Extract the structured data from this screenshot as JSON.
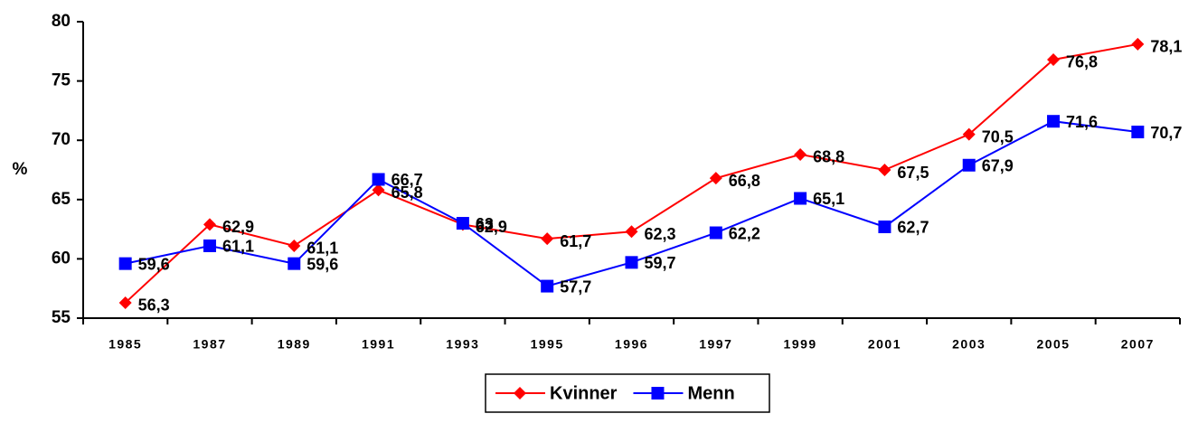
{
  "chart_data": {
    "type": "line",
    "y_label": "%",
    "categories": [
      "1985",
      "1987",
      "1989",
      "1991",
      "1993",
      "1995",
      "1996",
      "1997",
      "1999",
      "2001",
      "2003",
      "2005",
      "2007"
    ],
    "series": [
      {
        "name": "Kvinner",
        "color": "#ff0000",
        "marker": "diamond",
        "values": [
          56.3,
          62.9,
          61.1,
          65.8,
          62.9,
          61.7,
          62.3,
          66.8,
          68.8,
          67.5,
          70.5,
          76.8,
          78.1
        ],
        "value_labels": [
          "56,3",
          "62,9",
          "61,1",
          "65,8",
          "62,9",
          "61,7",
          "62,3",
          "66,8",
          "68,8",
          "67,5",
          "70,5",
          "76,8",
          "78,1"
        ]
      },
      {
        "name": "Menn",
        "color": "#0000ff",
        "marker": "square",
        "values": [
          59.6,
          61.1,
          59.6,
          66.7,
          63,
          57.7,
          59.7,
          62.2,
          65.1,
          62.7,
          67.9,
          71.6,
          70.7
        ],
        "value_labels": [
          "59,6",
          "61,1",
          "59,6",
          "66,7",
          "63",
          "57,7",
          "59,7",
          "62,2",
          "65,1",
          "62,7",
          "67,9",
          "71,6",
          "70,7"
        ]
      }
    ],
    "ylim": [
      55,
      80
    ],
    "yticks": [
      55,
      60,
      65,
      70,
      75,
      80
    ],
    "grid": false,
    "legend": "bottom"
  }
}
